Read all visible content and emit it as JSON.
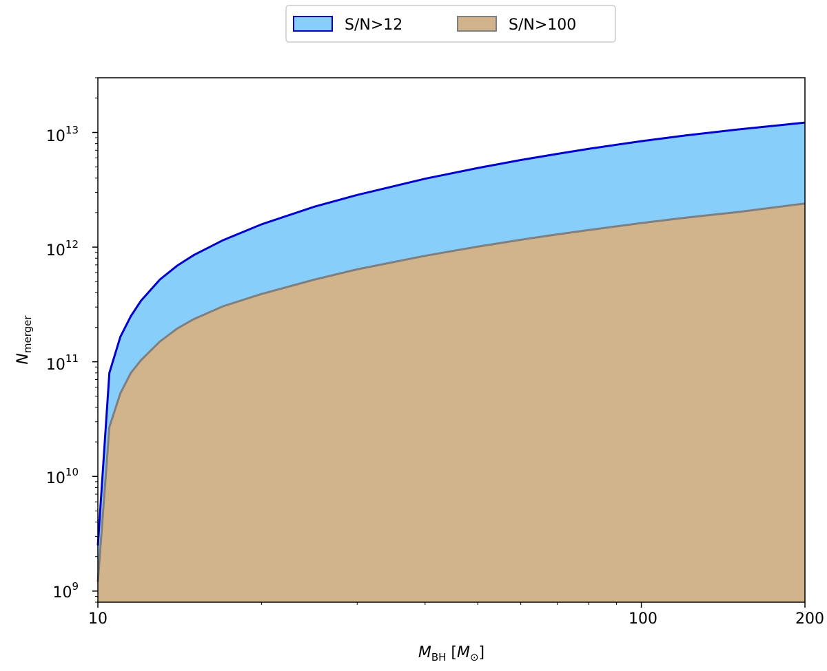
{
  "chart_data": {
    "type": "area",
    "x_scale": "log",
    "y_scale": "log",
    "xlim": [
      10,
      200
    ],
    "ylim": [
      800000000,
      30000000000000
    ],
    "x_ticks": [
      10,
      100,
      200
    ],
    "x_tick_labels": [
      "10",
      "100",
      "200"
    ],
    "y_tick_labels": [
      {
        "base": "10",
        "exp": "9"
      },
      {
        "base": "10",
        "exp": "10"
      },
      {
        "base": "10",
        "exp": "11"
      },
      {
        "base": "10",
        "exp": "12"
      },
      {
        "base": "10",
        "exp": "13"
      }
    ],
    "xlabel": {
      "sym": "M",
      "sub": "BH",
      "bracket_open": " [",
      "unit": "M",
      "unit_sub": "⊙",
      "bracket_close": "]"
    },
    "ylabel": {
      "sym": "N",
      "sub": "merger"
    },
    "legend_position": "top-center",
    "colors": {
      "s12_fill": "#87CEFA",
      "s12_edge": "#0000CD",
      "s100_fill": "#D2B48C",
      "s100_edge": "#7F7F7F"
    },
    "series": [
      {
        "name": "S/N>12",
        "x": [
          10,
          10.5,
          11,
          11.5,
          12,
          13,
          14,
          15,
          17,
          20,
          25,
          30,
          40,
          50,
          60,
          70,
          80,
          100,
          120,
          150,
          200
        ],
        "values": [
          2500000000,
          80000000000,
          165000000000,
          250000000000,
          340000000000,
          520000000000,
          690000000000,
          850000000000,
          1150000000000,
          1580000000000,
          2250000000000,
          2850000000000,
          3950000000000,
          4900000000000,
          5750000000000,
          6500000000000,
          7200000000000,
          8400000000000,
          9400000000000,
          10600000000000,
          12200000000000
        ]
      },
      {
        "name": "S/N>100",
        "x": [
          10,
          10.5,
          11,
          11.5,
          12,
          13,
          14,
          15,
          17,
          20,
          25,
          30,
          40,
          50,
          60,
          70,
          80,
          100,
          120,
          150,
          200
        ],
        "values": [
          1200000000,
          27000000000,
          53000000000,
          80000000000,
          103000000000,
          150000000000,
          195000000000,
          235000000000,
          305000000000,
          390000000000,
          520000000000,
          640000000000,
          840000000000,
          1010000000000,
          1160000000000,
          1290000000000,
          1410000000000,
          1620000000000,
          1800000000000,
          2020000000000,
          2400000000000
        ]
      }
    ]
  }
}
